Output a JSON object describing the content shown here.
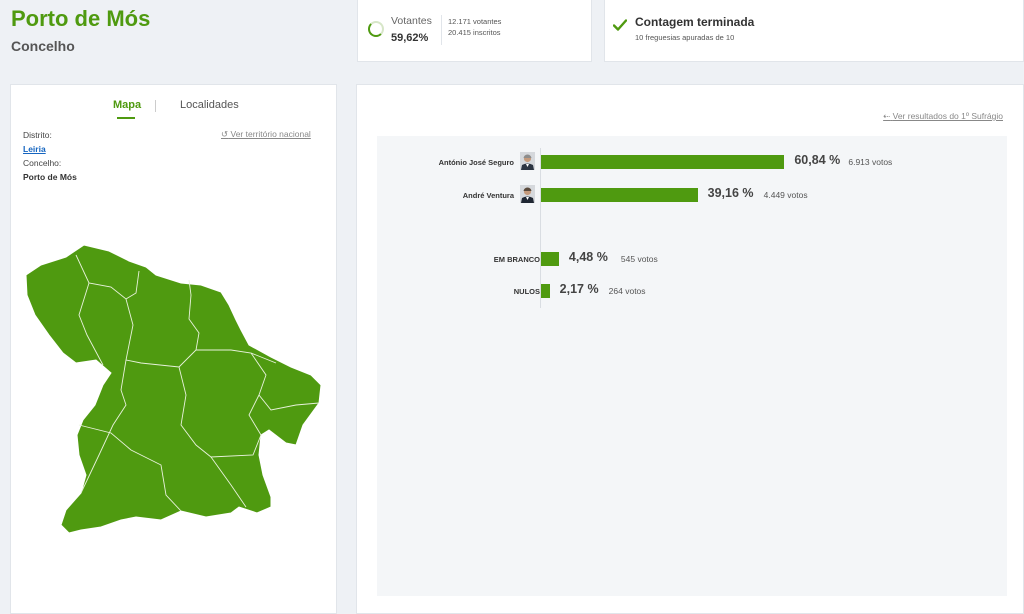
{
  "header": {
    "title": "Porto de Mós",
    "subtitle": "Concelho"
  },
  "turnout": {
    "label": "Votantes",
    "percent": "59,62%",
    "voters": "12.171 votantes",
    "registered": "20.415 inscritos"
  },
  "count": {
    "title": "Contagem terminada",
    "subtitle": "10 freguesias apuradas de 10"
  },
  "map_panel": {
    "tabs": [
      {
        "label": "Mapa"
      },
      {
        "label": "Localidades"
      }
    ],
    "district_label": "Distrito:",
    "district_value": "Leiria",
    "council_label": "Concelho:",
    "council_value": "Porto de Mós",
    "reset_link": "Ver território nacional"
  },
  "results": {
    "back_link": "Ver resultados do 1º Sufrágio",
    "candidates": [
      {
        "name": "António José Seguro",
        "percent": "60,84 %",
        "votes": "6.913 votos",
        "share": 60.84
      },
      {
        "name": "André Ventura",
        "percent": "39,16 %",
        "votes": "4.449 votos",
        "share": 39.16
      }
    ],
    "others": [
      {
        "name": "EM BRANCO",
        "percent": "4,48 %",
        "votes": "545 votos",
        "share": 4.48
      },
      {
        "name": "NULOS",
        "percent": "2,17 %",
        "votes": "264 votos",
        "share": 2.17
      }
    ]
  },
  "colors": {
    "accent": "#4f9a10",
    "map_fill": "#4f9a10",
    "link": "#1565c0"
  }
}
